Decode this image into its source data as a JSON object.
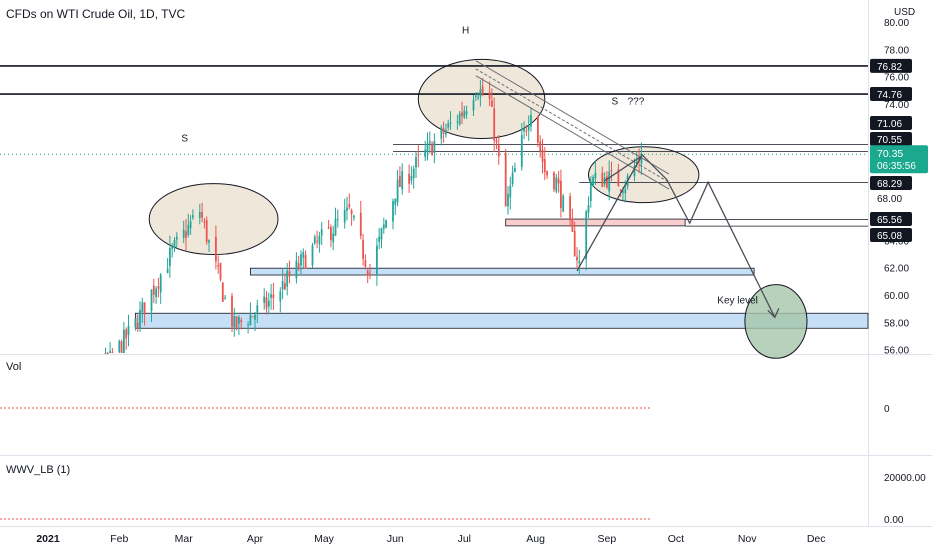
{
  "header": {
    "title": "CFDs on WTI Crude Oil, 1D, TVC",
    "currency": "USD"
  },
  "price_pane": {
    "y_ticks": [
      "80.00",
      "78.00",
      "76.00",
      "74.00",
      "72.00",
      "70.00",
      "68.00",
      "66.00",
      "64.00",
      "62.00",
      "60.00",
      "58.00",
      "56.00"
    ],
    "last_price": {
      "value": "70.35",
      "countdown": "06:35:56"
    },
    "level_labels": [
      "76.82",
      "74.76",
      "71.06",
      "70.55",
      "68.29",
      "68.00",
      "65.56",
      "65.08"
    ],
    "annotations": {
      "left_shoulder": "S",
      "head": "H",
      "right_shoulder": "S",
      "question": "???",
      "key_level": "Key level"
    }
  },
  "vol_pane": {
    "label": "Vol",
    "zero_tick": "0"
  },
  "wwv_pane": {
    "label": "WWV_LB (1)",
    "ticks": [
      "20000.00",
      "0.00"
    ]
  },
  "time_axis": {
    "labels": [
      "2021",
      "Feb",
      "Mar",
      "Apr",
      "May",
      "Jun",
      "Jul",
      "Aug",
      "Sep",
      "Oct",
      "Nov",
      "Dec"
    ]
  },
  "colors": {
    "up": "#26a69a",
    "down": "#ef5350",
    "blue_zone": "#bbd9f5",
    "pink_zone": "#f7c9c9",
    "ellipse": "#eadfcc",
    "key_circle": "#a5c6a9",
    "last_price": "#1aa98e"
  },
  "chart_data": {
    "type": "candlestick",
    "title": "CFDs on WTI Crude Oil, 1D, TVC",
    "ylabel": "USD",
    "ylim": [
      55.7,
      80.9
    ],
    "time_period": "2021-01-04 to 2021-09-16 (daily)",
    "anchors": [
      {
        "date": "2021-01-04",
        "close": 47.6
      },
      {
        "date": "2021-01-20",
        "close": 53.3
      },
      {
        "date": "2021-02-08",
        "close": 57.9
      },
      {
        "date": "2021-02-24",
        "close": 63.2
      },
      {
        "date": "2021-03-08",
        "close": 66.2
      },
      {
        "date": "2021-03-18",
        "close": 60.2
      },
      {
        "date": "2021-03-23",
        "close": 57.7
      },
      {
        "date": "2021-04-06",
        "close": 59.3
      },
      {
        "date": "2021-04-28",
        "close": 63.8
      },
      {
        "date": "2021-05-12",
        "close": 66.1
      },
      {
        "date": "2021-05-21",
        "close": 61.7
      },
      {
        "date": "2021-06-01",
        "close": 67.7
      },
      {
        "date": "2021-06-17",
        "close": 71.0
      },
      {
        "date": "2021-06-30",
        "close": 73.4
      },
      {
        "date": "2021-07-06",
        "close": 75.3
      },
      {
        "date": "2021-07-12",
        "close": 74.2
      },
      {
        "date": "2021-07-19",
        "close": 66.4
      },
      {
        "date": "2021-07-30",
        "close": 73.9
      },
      {
        "date": "2021-08-05",
        "close": 69.1
      },
      {
        "date": "2021-08-10",
        "close": 68.4
      },
      {
        "date": "2021-08-20",
        "close": 62.3
      },
      {
        "date": "2021-08-25",
        "close": 68.4
      },
      {
        "date": "2021-09-01",
        "close": 68.6
      },
      {
        "date": "2021-09-09",
        "close": 68.2
      },
      {
        "date": "2021-09-16",
        "close": 70.35
      }
    ],
    "last_price": 70.35,
    "horizontal_levels": [
      76.82,
      74.76,
      71.06,
      70.55,
      68.29,
      68.0,
      65.56,
      65.08
    ],
    "support_zones": [
      {
        "from": 57.6,
        "to": 58.7,
        "start": "2021-02-08",
        "end": "2021-12-31"
      },
      {
        "from": 61.5,
        "to": 62.0,
        "start": "2021-03-30",
        "end": "2021-11-04"
      }
    ],
    "resistance_zones": [
      {
        "from": 65.1,
        "to": 65.6,
        "start": "2021-07-19",
        "end": "2021-10-05"
      }
    ],
    "pattern": "head-and-shoulders",
    "projection": [
      {
        "date": "2021-09-16",
        "value": 70.35
      },
      {
        "date": "2021-09-27",
        "value": 68.5
      },
      {
        "date": "2021-10-07",
        "value": 65.3
      },
      {
        "date": "2021-10-15",
        "value": 68.3
      },
      {
        "date": "2021-11-13",
        "value": 58.4
      }
    ],
    "volume_scale_ticks": [
      0
    ],
    "wwv_scale_ticks": [
      20000,
      0
    ]
  }
}
